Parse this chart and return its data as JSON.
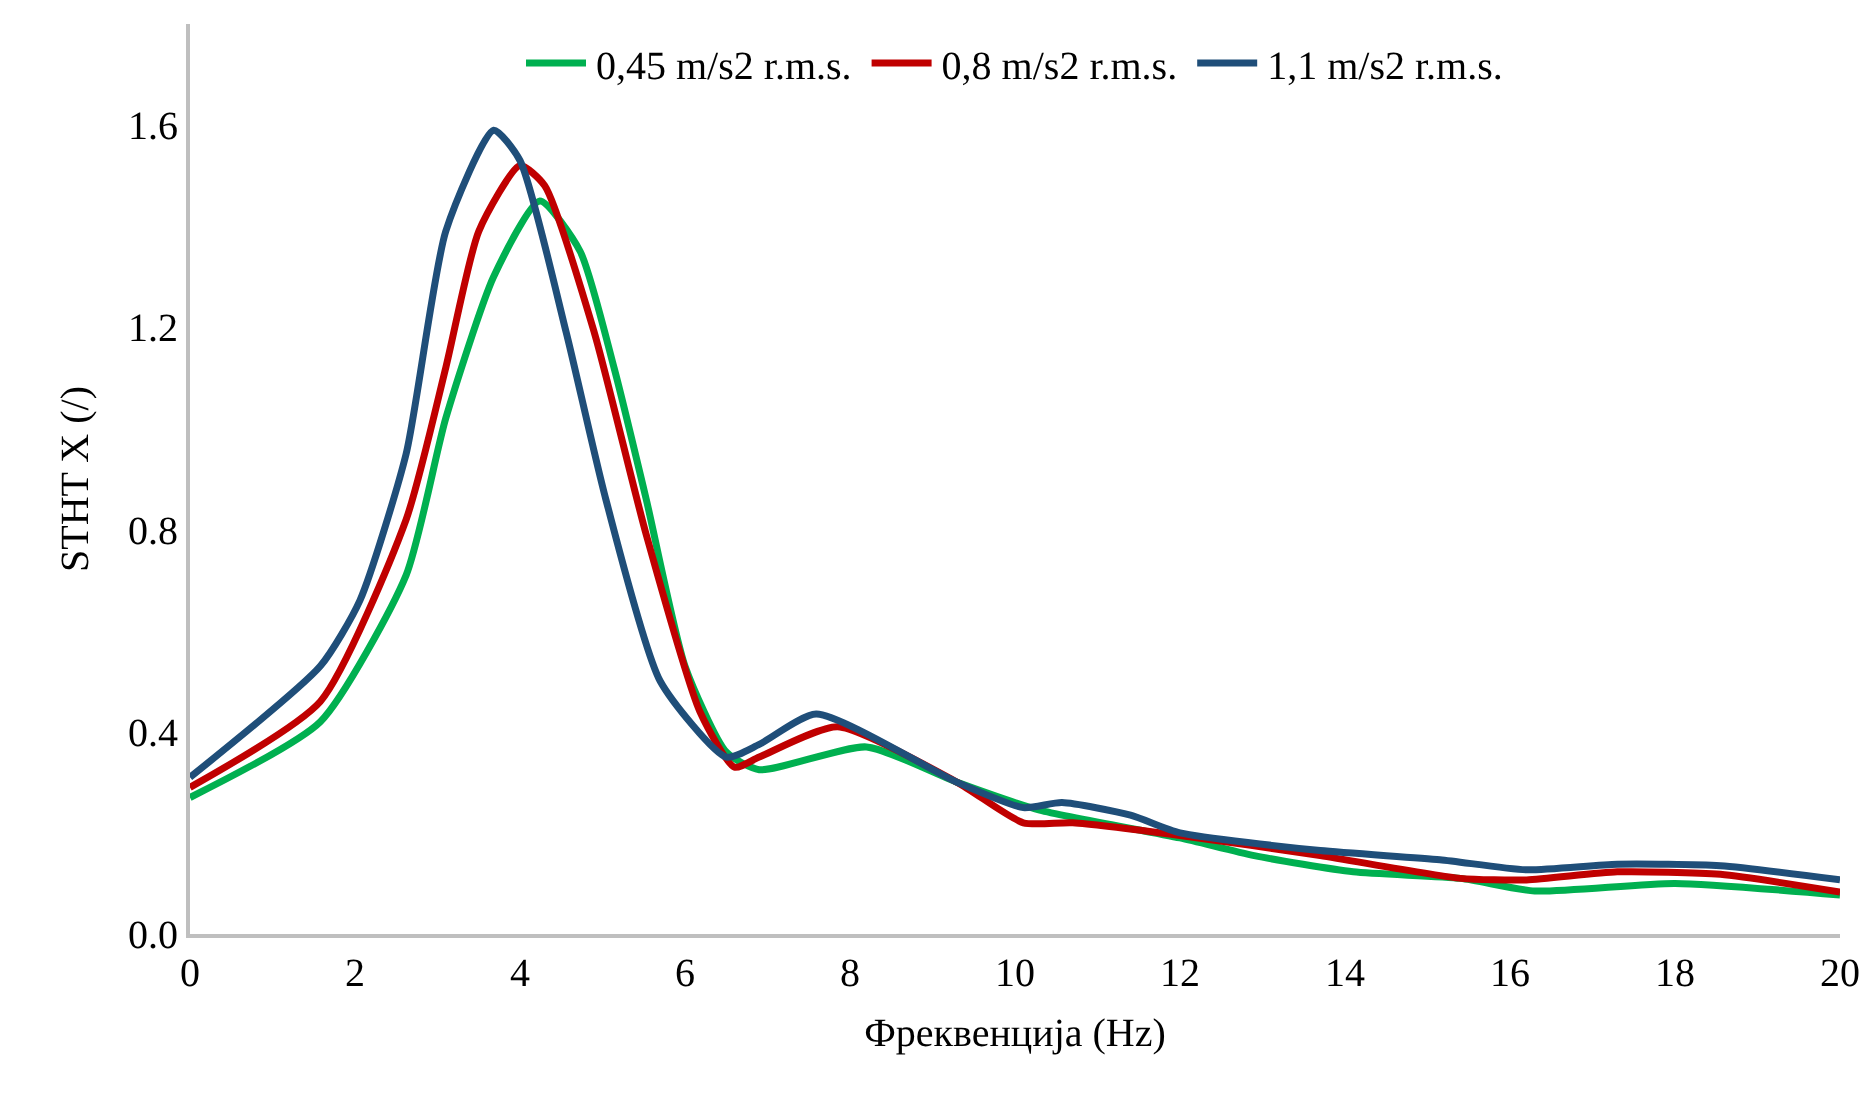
{
  "chart_data": {
    "type": "line",
    "xlabel": "Фреквенција (Hz)",
    "ylabel": "STHT X (/)",
    "xlim": [
      0,
      20
    ],
    "xticks": [
      0,
      2,
      4,
      6,
      8,
      10,
      12,
      14,
      16,
      18,
      20
    ],
    "ylim": [
      0,
      1.8
    ],
    "yticks": [
      {
        "value": 0,
        "label": "0.0"
      },
      {
        "value": 0.4,
        "label": "0.4"
      },
      {
        "value": 0.8,
        "label": "0.8"
      },
      {
        "value": 1.2,
        "label": "1.2"
      },
      {
        "value": 1.6,
        "label": "1.6"
      }
    ],
    "grid": false,
    "legend": "top",
    "marker": "none",
    "line_style": "solid",
    "series": [
      {
        "name": "0,45 m/s2 r.m.s.",
        "color": "#00b050",
        "x": [
          0,
          1.58,
          2.62,
          3.1,
          3.68,
          4.24,
          4.73,
          5.14,
          5.53,
          6.0,
          6.5,
          6.9,
          8.2,
          9.3,
          10.3,
          12,
          12.9,
          14.1,
          15.4,
          16.3,
          18,
          20
        ],
        "values": [
          0.27,
          0.42,
          0.71,
          1.02,
          1.3,
          1.45,
          1.35,
          1.12,
          0.86,
          0.53,
          0.36,
          0.325,
          0.37,
          0.3,
          0.245,
          0.19,
          0.155,
          0.123,
          0.11,
          0.085,
          0.1,
          0.077
        ]
      },
      {
        "name": "0,8 m/s2 r.m.s.",
        "color": "#c00000",
        "x": [
          0,
          1.58,
          2.62,
          3.1,
          3.5,
          4.0,
          4.3,
          4.9,
          5.53,
          6.18,
          6.6,
          6.9,
          7.85,
          9.3,
          10.1,
          10.7,
          12,
          13.7,
          15.4,
          16.2,
          17.3,
          18.55,
          20
        ],
        "values": [
          0.29,
          0.46,
          0.82,
          1.12,
          1.39,
          1.52,
          1.48,
          1.19,
          0.79,
          0.44,
          0.33,
          0.35,
          0.41,
          0.3,
          0.22,
          0.22,
          0.195,
          0.155,
          0.11,
          0.107,
          0.123,
          0.118,
          0.083
        ]
      },
      {
        "name": "1,1 m/s2 r.m.s.",
        "color": "#1f4e79",
        "x": [
          0,
          1.58,
          2.06,
          2.62,
          3.1,
          3.68,
          4.0,
          4.56,
          5.04,
          5.7,
          6.5,
          6.9,
          7.59,
          9.3,
          10.1,
          10.57,
          11.4,
          12,
          13.7,
          15.15,
          16.2,
          17.3,
          18.55,
          20
        ],
        "values": [
          0.31,
          0.53,
          0.66,
          0.95,
          1.39,
          1.59,
          1.53,
          1.19,
          0.86,
          0.5,
          0.35,
          0.375,
          0.435,
          0.3,
          0.25,
          0.26,
          0.235,
          0.2,
          0.165,
          0.147,
          0.127,
          0.138,
          0.135,
          0.107
        ]
      }
    ]
  }
}
